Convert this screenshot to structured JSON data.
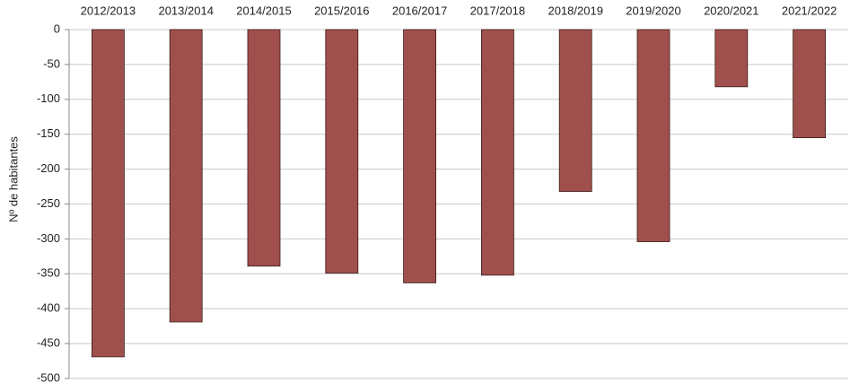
{
  "chart_data": {
    "type": "bar",
    "y_label": "Nº de habitantes",
    "categories": [
      "2012/2013",
      "2013/2014",
      "2014/2015",
      "2015/2016",
      "2016/2017",
      "2017/2018",
      "2018/2019",
      "2019/2020",
      "2020/2021",
      "2021/2022"
    ],
    "values": [
      -469,
      -419,
      -339,
      -349,
      -363,
      -352,
      -232,
      -304,
      -82,
      -155
    ],
    "color": "#a0504c",
    "ylim": [
      -500,
      0
    ],
    "yticks": [
      0,
      -50,
      -100,
      -150,
      -200,
      -250,
      -300,
      -350,
      -400,
      -450,
      -500
    ],
    "grid": true
  }
}
